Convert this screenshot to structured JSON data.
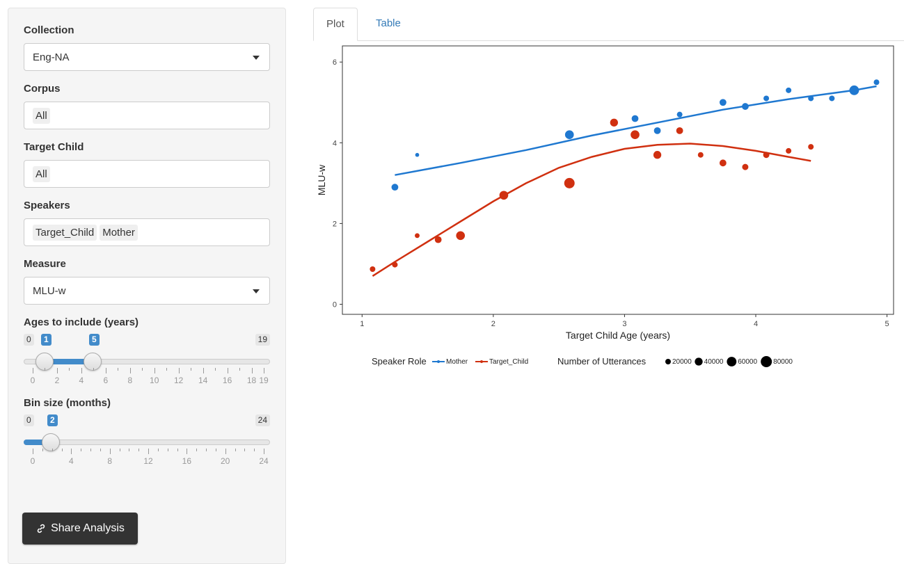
{
  "sidebar": {
    "collection": {
      "label": "Collection",
      "value": "Eng-NA"
    },
    "corpus": {
      "label": "Corpus",
      "chips": [
        "All"
      ]
    },
    "target_child": {
      "label": "Target Child",
      "chips": [
        "All"
      ]
    },
    "speakers": {
      "label": "Speakers",
      "chips": [
        "Target_Child",
        "Mother"
      ]
    },
    "measure": {
      "label": "Measure",
      "value": "MLU-w"
    },
    "ages": {
      "label": "Ages to include (years)",
      "min": "0",
      "max": "19",
      "from": "1",
      "to": "5",
      "ticks": [
        "0",
        "2",
        "4",
        "6",
        "8",
        "10",
        "12",
        "14",
        "16",
        "18",
        "19"
      ]
    },
    "bin": {
      "label": "Bin size (months)",
      "min": "0",
      "max": "24",
      "value": "2",
      "ticks": [
        "0",
        "4",
        "8",
        "12",
        "16",
        "20",
        "24"
      ]
    },
    "share_label": "Share Analysis",
    "share_icon": "link-icon"
  },
  "tabs": [
    {
      "label": "Plot"
    },
    {
      "label": "Table"
    }
  ],
  "chart_data": {
    "type": "scatter",
    "xlabel": "Target Child Age (years)",
    "ylabel": "MLU-w",
    "xlim": [
      0.85,
      5.05
    ],
    "ylim": [
      -0.25,
      6.4
    ],
    "xticks": [
      1,
      2,
      3,
      4,
      5
    ],
    "yticks": [
      0,
      2,
      4,
      6
    ],
    "grid": false,
    "legend_position": "bottom",
    "legend": {
      "color_title": "Speaker Role",
      "size_title": "Number of Utterances",
      "size_values": [
        20000,
        40000,
        60000,
        80000
      ]
    },
    "series": [
      {
        "name": "Mother",
        "color": "#1f78d0",
        "x": [
          1.25,
          1.42,
          2.58,
          3.08,
          3.25,
          3.42,
          3.75,
          3.92,
          4.08,
          4.25,
          4.42,
          4.58,
          4.75,
          4.92
        ],
        "y": [
          2.9,
          3.7,
          4.2,
          4.6,
          4.3,
          4.7,
          5.0,
          4.9,
          5.1,
          5.3,
          5.1,
          5.1,
          5.3,
          5.5
        ],
        "n": [
          30000,
          10000,
          50000,
          30000,
          30000,
          20000,
          30000,
          30000,
          20000,
          20000,
          20000,
          20000,
          60000,
          20000
        ],
        "fit_x": [
          1.25,
          1.75,
          2.25,
          2.75,
          3.25,
          3.75,
          4.25,
          4.75,
          4.92
        ],
        "fit_y": [
          3.2,
          3.5,
          3.82,
          4.18,
          4.5,
          4.82,
          5.08,
          5.3,
          5.4
        ]
      },
      {
        "name": "Target_Child",
        "color": "#d03010",
        "x": [
          1.08,
          1.25,
          1.42,
          1.58,
          1.75,
          2.08,
          2.58,
          2.92,
          3.08,
          3.25,
          3.42,
          3.58,
          3.75,
          3.92,
          4.08,
          4.25,
          4.42
        ],
        "y": [
          0.87,
          0.98,
          1.7,
          1.6,
          1.7,
          2.7,
          3.0,
          4.5,
          4.2,
          3.7,
          4.3,
          3.7,
          3.5,
          3.4,
          3.7,
          3.8,
          3.9
        ],
        "n": [
          20000,
          20000,
          15000,
          30000,
          50000,
          50000,
          70000,
          40000,
          50000,
          40000,
          30000,
          20000,
          30000,
          25000,
          25000,
          20000,
          20000
        ],
        "fit_x": [
          1.08,
          1.25,
          1.5,
          1.75,
          2.0,
          2.25,
          2.5,
          2.75,
          3.0,
          3.25,
          3.5,
          3.75,
          4.0,
          4.25,
          4.42
        ],
        "fit_y": [
          0.7,
          1.05,
          1.55,
          2.05,
          2.55,
          3.0,
          3.38,
          3.65,
          3.85,
          3.95,
          3.98,
          3.92,
          3.8,
          3.65,
          3.55
        ]
      }
    ]
  }
}
